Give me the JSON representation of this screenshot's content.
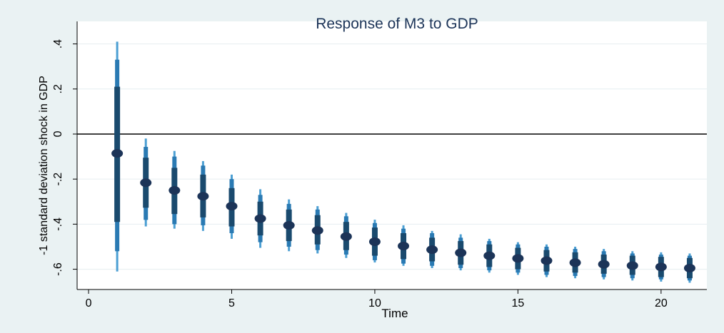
{
  "chart_data": {
    "type": "interval",
    "title": "Response of M3 to GDP",
    "x_label": "Time",
    "y_label": "-1 standard deviation shock in GDP",
    "x": [
      1,
      2,
      3,
      4,
      5,
      6,
      7,
      8,
      9,
      10,
      11,
      12,
      13,
      14,
      15,
      16,
      17,
      18,
      19,
      20,
      21
    ],
    "values": [
      -0.086,
      -0.216,
      -0.25,
      -0.276,
      -0.32,
      -0.375,
      -0.405,
      -0.428,
      -0.455,
      -0.478,
      -0.497,
      -0.513,
      -0.527,
      -0.54,
      -0.552,
      -0.562,
      -0.571,
      -0.578,
      -0.584,
      -0.59,
      -0.595
    ],
    "point_color": "#1c3458",
    "bands": [
      {
        "color": "#4c9fd3",
        "lower": [
          -0.61,
          -0.41,
          -0.42,
          -0.43,
          -0.465,
          -0.505,
          -0.52,
          -0.53,
          -0.55,
          -0.57,
          -0.585,
          -0.595,
          -0.605,
          -0.615,
          -0.625,
          -0.635,
          -0.64,
          -0.645,
          -0.65,
          -0.655,
          -0.66
        ],
        "upper": [
          0.41,
          -0.02,
          -0.075,
          -0.12,
          -0.18,
          -0.245,
          -0.29,
          -0.32,
          -0.35,
          -0.38,
          -0.405,
          -0.43,
          -0.445,
          -0.465,
          -0.48,
          -0.49,
          -0.5,
          -0.51,
          -0.52,
          -0.525,
          -0.53
        ]
      },
      {
        "color": "#2a7ab3",
        "lower": [
          -0.52,
          -0.381,
          -0.4,
          -0.405,
          -0.44,
          -0.48,
          -0.5,
          -0.515,
          -0.535,
          -0.56,
          -0.575,
          -0.585,
          -0.595,
          -0.605,
          -0.615,
          -0.625,
          -0.63,
          -0.635,
          -0.64,
          -0.645,
          -0.65
        ],
        "upper": [
          0.33,
          -0.057,
          -0.1,
          -0.14,
          -0.2,
          -0.27,
          -0.31,
          -0.335,
          -0.365,
          -0.395,
          -0.42,
          -0.44,
          -0.46,
          -0.475,
          -0.49,
          -0.5,
          -0.51,
          -0.52,
          -0.53,
          -0.535,
          -0.54
        ]
      },
      {
        "color": "#1a4a6e",
        "lower": [
          -0.39,
          -0.327,
          -0.355,
          -0.37,
          -0.41,
          -0.45,
          -0.475,
          -0.49,
          -0.515,
          -0.54,
          -0.555,
          -0.565,
          -0.58,
          -0.59,
          -0.6,
          -0.61,
          -0.615,
          -0.62,
          -0.625,
          -0.635,
          -0.64
        ],
        "upper": [
          0.21,
          -0.105,
          -0.15,
          -0.18,
          -0.24,
          -0.3,
          -0.335,
          -0.36,
          -0.39,
          -0.415,
          -0.44,
          -0.46,
          -0.475,
          -0.49,
          -0.505,
          -0.515,
          -0.525,
          -0.535,
          -0.54,
          -0.545,
          -0.55
        ]
      }
    ],
    "reference_line": 0,
    "xlim": [
      -0.4,
      21.6
    ],
    "ylim": [
      -0.69,
      0.5
    ],
    "xticks": [
      0,
      5,
      10,
      15,
      20
    ],
    "yticks": [
      {
        "value": -0.6,
        "label": "-.6"
      },
      {
        "value": -0.4,
        "label": "-.4"
      },
      {
        "value": -0.2,
        "label": "-.2"
      },
      0,
      {
        "value": 0.2,
        "label": ".2"
      },
      {
        "value": 0.4,
        "label": ".4"
      }
    ],
    "grid": true
  }
}
